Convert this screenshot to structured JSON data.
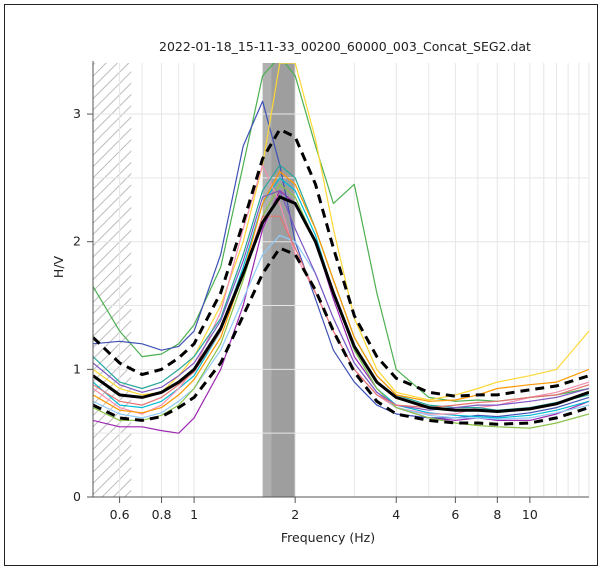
{
  "chart_data": {
    "type": "line",
    "title": "2022-01-18_15-11-33_00200_60000_003_Concat_SEG2.dat",
    "xlabel": "Frequency (Hz)",
    "ylabel": "H/V",
    "x_scale": "log",
    "xlim": [
      0.5,
      15
    ],
    "ylim": [
      0,
      3.4
    ],
    "grid": true,
    "x_ticks": [
      {
        "value": 0.6,
        "label": "0.6"
      },
      {
        "value": 0.8,
        "label": "0.8"
      },
      {
        "value": 1,
        "label": "1"
      },
      {
        "value": 2,
        "label": "2"
      },
      {
        "value": 4,
        "label": "4"
      },
      {
        "value": 6,
        "label": "6"
      },
      {
        "value": 8,
        "label": "8"
      },
      {
        "value": 10,
        "label": "10"
      }
    ],
    "y_ticks": [
      {
        "value": 0,
        "label": "0"
      },
      {
        "value": 1,
        "label": "1"
      },
      {
        "value": 2,
        "label": "2"
      },
      {
        "value": 3,
        "label": "3"
      }
    ],
    "excluded_low_frequency_band": [
      0.5,
      0.65
    ],
    "peak_frequency_band": [
      1.6,
      2.0
    ],
    "peak_frequency_std_band": [
      1.7,
      2.0
    ],
    "x": [
      0.5,
      0.6,
      0.7,
      0.8,
      0.9,
      1.0,
      1.2,
      1.4,
      1.6,
      1.8,
      2.0,
      2.3,
      2.6,
      3.0,
      3.5,
      4.0,
      5.0,
      6.0,
      7.0,
      8.0,
      10.0,
      12.0,
      15.0
    ],
    "mean_curve": {
      "color": "#000000",
      "values": [
        0.95,
        0.8,
        0.78,
        0.82,
        0.9,
        1.0,
        1.32,
        1.75,
        2.15,
        2.35,
        2.3,
        2.0,
        1.6,
        1.18,
        0.9,
        0.78,
        0.7,
        0.68,
        0.68,
        0.67,
        0.69,
        0.73,
        0.82
      ]
    },
    "std_upper_curve": {
      "color": "#000000",
      "values": [
        1.25,
        1.05,
        0.96,
        1.0,
        1.09,
        1.2,
        1.6,
        2.15,
        2.65,
        2.88,
        2.82,
        2.45,
        1.95,
        1.42,
        1.1,
        0.93,
        0.82,
        0.79,
        0.8,
        0.8,
        0.84,
        0.87,
        0.95
      ]
    },
    "std_lower_curve": {
      "color": "#000000",
      "values": [
        0.72,
        0.62,
        0.6,
        0.63,
        0.7,
        0.78,
        1.05,
        1.42,
        1.75,
        1.95,
        1.9,
        1.62,
        1.3,
        0.98,
        0.75,
        0.65,
        0.6,
        0.58,
        0.58,
        0.57,
        0.58,
        0.62,
        0.7
      ]
    },
    "window_curves": [
      {
        "color": "#4caf50",
        "values": [
          1.65,
          1.3,
          1.1,
          1.12,
          1.2,
          1.35,
          1.8,
          2.6,
          3.3,
          3.45,
          3.3,
          2.75,
          2.3,
          2.45,
          1.6,
          1.0,
          0.78,
          0.75,
          0.76,
          0.75,
          0.78,
          0.8,
          0.85
        ]
      },
      {
        "color": "#9c27b0",
        "values": [
          0.6,
          0.55,
          0.55,
          0.52,
          0.5,
          0.62,
          1.0,
          1.5,
          2.1,
          2.4,
          2.3,
          2.0,
          1.55,
          1.1,
          0.85,
          0.7,
          0.62,
          0.6,
          0.62,
          0.6,
          0.6,
          0.65,
          0.75
        ]
      },
      {
        "color": "#3f51b5",
        "values": [
          1.2,
          1.22,
          1.2,
          1.15,
          1.18,
          1.3,
          1.9,
          2.75,
          3.1,
          2.6,
          2.0,
          1.55,
          1.15,
          0.9,
          0.72,
          0.65,
          0.62,
          0.62,
          0.64,
          0.63,
          0.66,
          0.7,
          0.78
        ]
      },
      {
        "color": "#fdd835",
        "values": [
          1.0,
          0.85,
          0.8,
          0.82,
          0.95,
          1.1,
          1.5,
          2.0,
          2.6,
          3.4,
          3.4,
          2.8,
          2.1,
          1.4,
          1.0,
          0.82,
          0.76,
          0.8,
          0.85,
          0.9,
          0.95,
          1.0,
          1.3
        ]
      },
      {
        "color": "#00bcd4",
        "values": [
          0.9,
          0.72,
          0.7,
          0.75,
          0.85,
          0.95,
          1.3,
          1.8,
          2.3,
          2.5,
          2.4,
          2.05,
          1.6,
          1.15,
          0.85,
          0.72,
          0.66,
          0.64,
          0.63,
          0.62,
          0.64,
          0.68,
          0.75
        ]
      },
      {
        "color": "#f48fb1",
        "values": [
          0.85,
          0.7,
          0.65,
          0.72,
          0.85,
          1.0,
          1.45,
          2.1,
          2.6,
          2.3,
          1.9,
          1.6,
          1.3,
          1.0,
          0.8,
          0.7,
          0.65,
          0.65,
          0.7,
          0.72,
          0.78,
          0.82,
          0.9
        ]
      },
      {
        "color": "#26a69a",
        "values": [
          1.1,
          0.9,
          0.85,
          0.9,
          1.0,
          1.1,
          1.4,
          1.9,
          2.4,
          2.6,
          2.5,
          2.1,
          1.7,
          1.25,
          0.95,
          0.8,
          0.72,
          0.7,
          0.7,
          0.68,
          0.7,
          0.74,
          0.8
        ]
      },
      {
        "color": "#90caf9",
        "values": [
          0.75,
          0.65,
          0.62,
          0.66,
          0.75,
          0.85,
          1.15,
          1.55,
          1.9,
          2.05,
          2.0,
          1.75,
          1.4,
          1.05,
          0.82,
          0.7,
          0.64,
          0.62,
          0.62,
          0.61,
          0.62,
          0.66,
          0.72
        ]
      },
      {
        "color": "#ff9800",
        "values": [
          0.8,
          0.68,
          0.66,
          0.7,
          0.8,
          0.92,
          1.25,
          1.75,
          2.3,
          2.55,
          2.45,
          2.1,
          1.7,
          1.25,
          0.95,
          0.8,
          0.75,
          0.76,
          0.8,
          0.85,
          0.88,
          0.9,
          1.0
        ]
      },
      {
        "color": "#8bc34a",
        "values": [
          0.7,
          0.6,
          0.6,
          0.64,
          0.72,
          0.85,
          1.2,
          1.7,
          2.2,
          2.45,
          2.35,
          2.0,
          1.6,
          1.15,
          0.85,
          0.7,
          0.62,
          0.58,
          0.56,
          0.55,
          0.54,
          0.58,
          0.65
        ]
      },
      {
        "color": "#7e57c2",
        "values": [
          1.05,
          0.88,
          0.82,
          0.86,
          0.95,
          1.05,
          1.38,
          1.85,
          2.35,
          2.4,
          2.1,
          1.75,
          1.4,
          1.05,
          0.82,
          0.72,
          0.68,
          0.7,
          0.72,
          0.72,
          0.75,
          0.78,
          0.85
        ]
      },
      {
        "color": "#e57373",
        "values": [
          0.88,
          0.75,
          0.72,
          0.78,
          0.88,
          0.98,
          1.3,
          1.75,
          2.2,
          2.2,
          1.95,
          1.6,
          1.3,
          1.0,
          0.8,
          0.72,
          0.7,
          0.72,
          0.74,
          0.75,
          0.78,
          0.8,
          0.88
        ]
      }
    ]
  }
}
